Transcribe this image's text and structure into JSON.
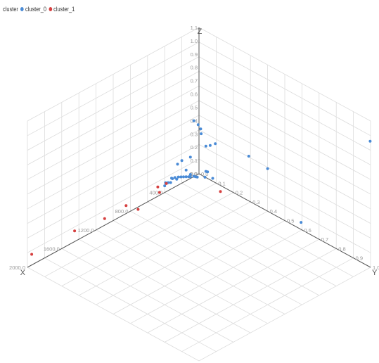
{
  "chart_data": {
    "type": "scatter",
    "dimensions": 3,
    "legend": {
      "title": "cluster",
      "position": "top-left",
      "entries": [
        {
          "label": "cluster_0",
          "color": "#4a8bd6"
        },
        {
          "label": "cluster_1",
          "color": "#d64040"
        }
      ]
    },
    "axes": {
      "x": {
        "label": "X",
        "range": [
          0,
          2000
        ],
        "ticks": [
          "0.0",
          "400.0",
          "800.0",
          "1200.0",
          "1600.0",
          "2000.0"
        ]
      },
      "y": {
        "label": "Y",
        "range": [
          0,
          1
        ],
        "ticks": [
          "0.0",
          "0.1",
          "0.2",
          "0.3",
          "0.4",
          "0.5",
          "0.6",
          "0.7",
          "0.8",
          "0.9",
          "1.0"
        ]
      },
      "z": {
        "label": "Z",
        "range": [
          0,
          1.1
        ],
        "ticks": [
          "0.0",
          "0.1",
          "0.2",
          "0.3",
          "0.4",
          "0.5",
          "0.6",
          "0.7",
          "0.8",
          "0.9",
          "1.0",
          "1.1"
        ]
      }
    },
    "grid": true,
    "series": [
      {
        "name": "cluster_0",
        "color": "#4a8bd6",
        "points": [
          [
            5,
            1.0,
            0.95
          ],
          [
            20,
            0.05,
            0.25
          ],
          [
            10,
            0.1,
            0.3
          ],
          [
            15,
            0.02,
            0.32
          ],
          [
            30,
            0.08,
            0.28
          ],
          [
            60,
            0.0,
            0.42
          ],
          [
            50,
            0.02,
            0.4
          ],
          [
            80,
            0.05,
            0.4
          ],
          [
            20,
            0.3,
            0.35
          ],
          [
            0,
            0.4,
            0.32
          ],
          [
            10,
            0.6,
            0.06
          ],
          [
            300,
            0.05,
            0.24
          ],
          [
            250,
            0.0,
            0.16
          ],
          [
            150,
            0.0,
            0.08
          ],
          [
            200,
            0.05,
            0.1
          ],
          [
            100,
            0.0,
            0.16
          ],
          [
            100,
            0.1,
            0.12
          ],
          [
            20,
            0.05,
            0.06
          ],
          [
            30,
            0.05,
            0.02
          ],
          [
            40,
            0.1,
            0.05
          ],
          [
            120,
            0.0,
            0.02
          ],
          [
            150,
            0.0,
            0.03
          ],
          [
            180,
            0.0,
            0.04
          ],
          [
            210,
            0.0,
            0.05
          ],
          [
            240,
            0.0,
            0.06
          ],
          [
            260,
            0.0,
            0.05
          ],
          [
            280,
            0.0,
            0.07
          ],
          [
            320,
            0.0,
            0.08
          ],
          [
            330,
            0.0,
            0.05
          ],
          [
            360,
            0.0,
            0.06
          ],
          [
            390,
            0.0,
            0.07
          ],
          [
            350,
            0.02,
            0.1
          ],
          [
            60,
            0.02,
            0.01
          ],
          [
            80,
            0.02,
            0.02
          ],
          [
            100,
            0.02,
            0.03
          ],
          [
            140,
            0.02,
            0.04
          ],
          [
            400,
            0.0,
            0.05
          ]
        ]
      },
      {
        "name": "cluster_1",
        "color": "#d64040",
        "points": [
          [
            1950,
            0.0,
            0.08
          ],
          [
            1450,
            0.0,
            0.08
          ],
          [
            1100,
            0.0,
            0.05
          ],
          [
            850,
            0.0,
            0.06
          ],
          [
            750,
            0.02,
            0.01
          ],
          [
            500,
            0.02,
            0.05
          ],
          [
            480,
            0.0,
            0.07
          ],
          [
            380,
            0.0,
            0.06
          ],
          [
            150,
            0.2,
            0.06
          ]
        ]
      }
    ]
  }
}
